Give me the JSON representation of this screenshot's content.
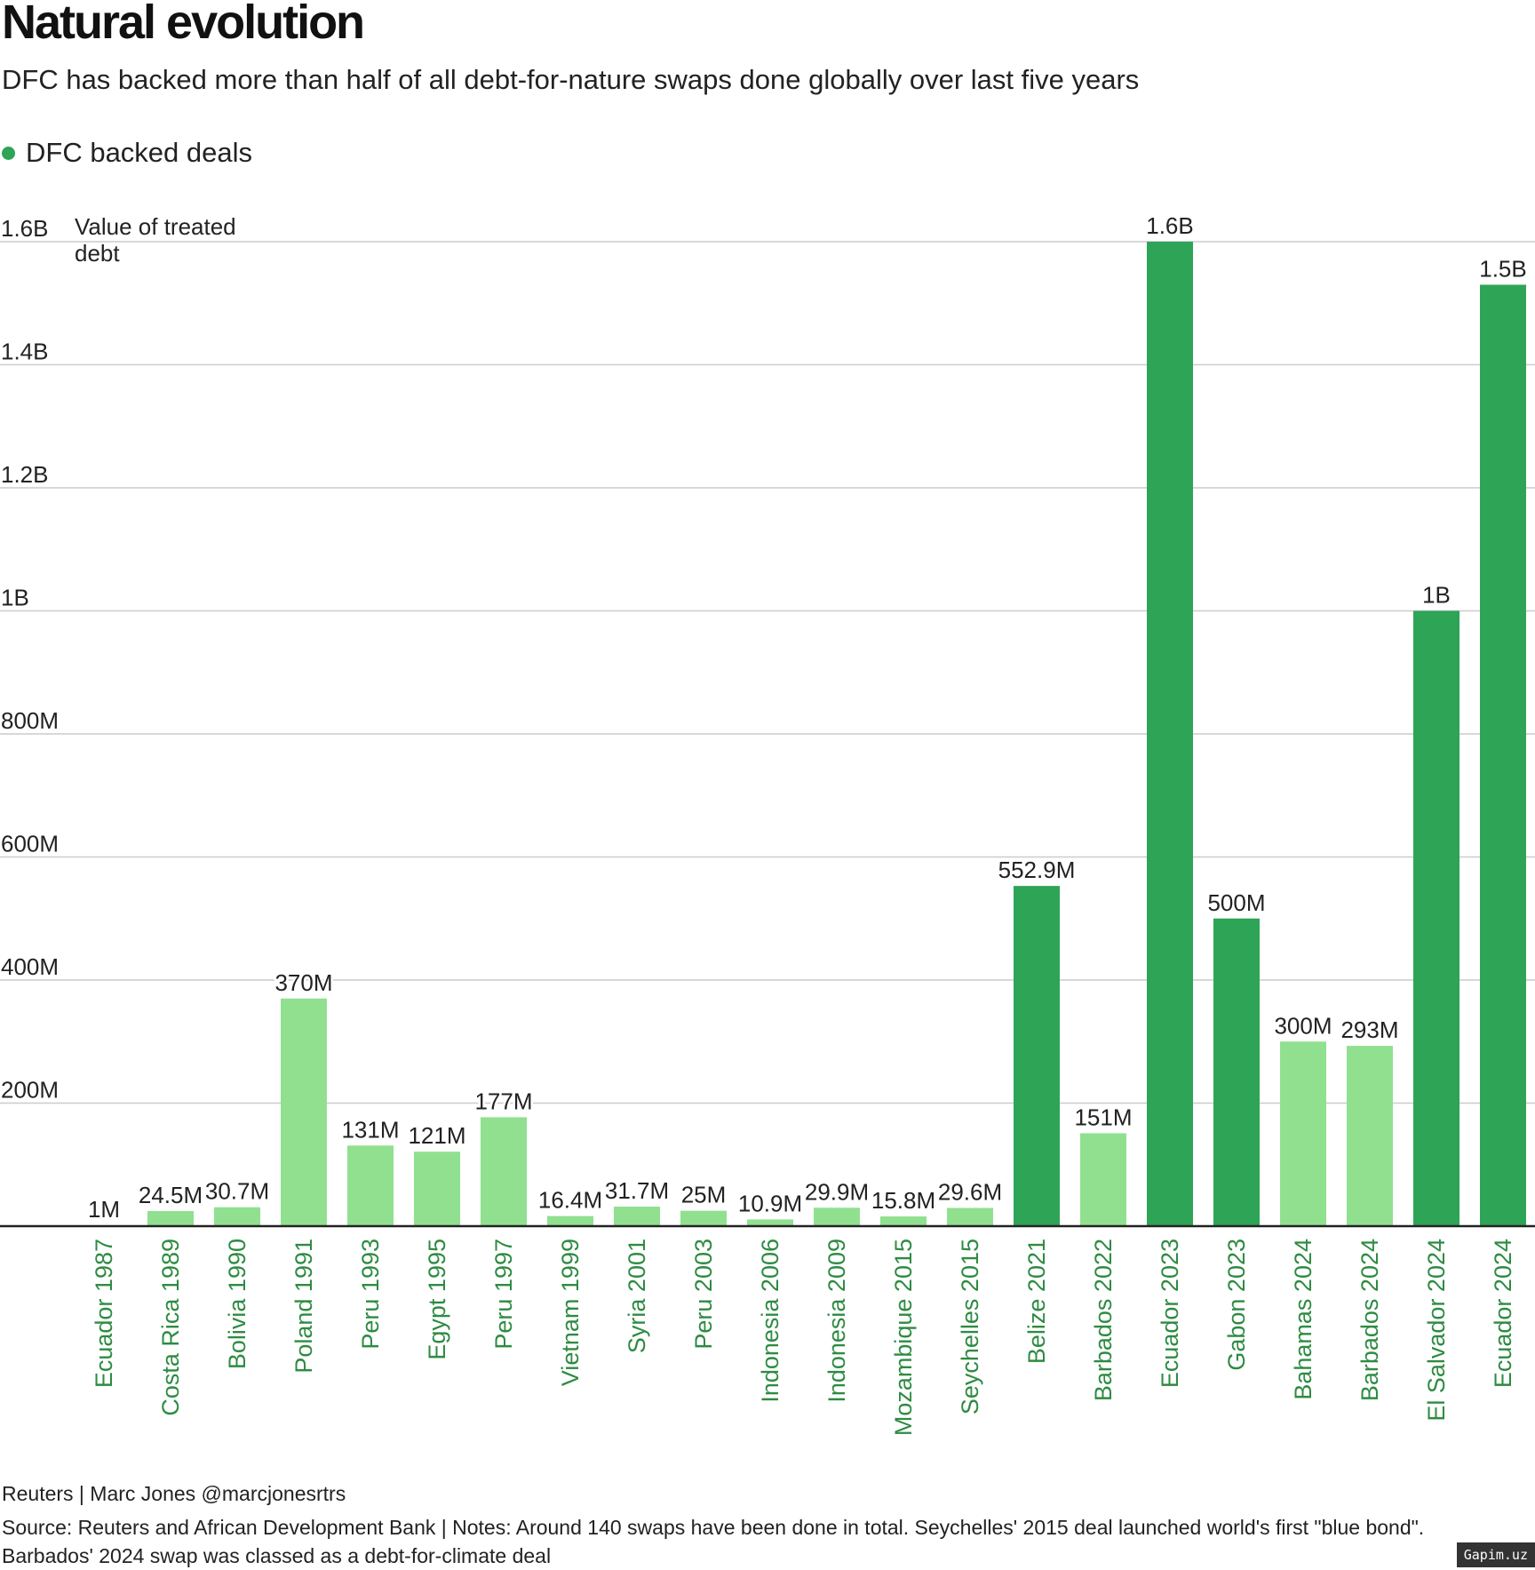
{
  "header": {
    "title": "Natural evolution",
    "subtitle": "DFC has backed more than half of all debt-for-nature swaps done globally over last five years",
    "legend_label": "DFC backed deals"
  },
  "colors": {
    "dfc": "#2ea456",
    "other": "#90e090",
    "label_text": "#2e8b42",
    "grid": "#cccccc",
    "axis": "#222222"
  },
  "chart_data": {
    "type": "bar",
    "title": "Natural evolution",
    "ylabel": "Value of treated debt",
    "ylabel_lines": [
      "Value of treated",
      "debt"
    ],
    "ylim": [
      0,
      1600000000
    ],
    "yticks": [
      200000000,
      400000000,
      600000000,
      800000000,
      1000000000,
      1200000000,
      1400000000,
      1600000000
    ],
    "ytick_labels": [
      "200M",
      "400M",
      "600M",
      "800M",
      "1B",
      "1.2B",
      "1.4B",
      "1.6B"
    ],
    "legend": "DFC backed deals",
    "categories": [
      "Ecuador 1987",
      "Costa Rica 1989",
      "Bolivia 1990",
      "Poland 1991",
      "Peru 1993",
      "Egypt 1995",
      "Peru 1997",
      "Vietnam 1999",
      "Syria 2001",
      "Peru 2003",
      "Indonesia 2006",
      "Indonesia 2009",
      "Mozambique 2015",
      "Seychelles 2015",
      "Belize 2021",
      "Barbados 2022",
      "Ecuador 2023",
      "Gabon 2023",
      "Bahamas 2024",
      "Barbados 2024",
      "El Salvador 2024",
      "Ecuador 2024"
    ],
    "values": [
      1000000,
      24500000,
      30700000,
      370000000,
      131000000,
      121000000,
      177000000,
      16400000,
      31700000,
      25000000,
      10900000,
      29900000,
      15800000,
      29600000,
      552900000,
      151000000,
      1600000000,
      500000000,
      300000000,
      293000000,
      1000000000,
      1530000000
    ],
    "value_labels": [
      "1M",
      "24.5M",
      "30.7M",
      "370M",
      "131M",
      "121M",
      "177M",
      "16.4M",
      "31.7M",
      "25M",
      "10.9M",
      "29.9M",
      "15.8M",
      "29.6M",
      "552.9M",
      "151M",
      "1.6B",
      "500M",
      "300M",
      "293M",
      "1B",
      "1.5B"
    ],
    "dfc_backed": [
      false,
      false,
      false,
      false,
      false,
      false,
      false,
      false,
      false,
      false,
      false,
      false,
      false,
      false,
      true,
      false,
      true,
      true,
      false,
      false,
      true,
      true
    ]
  },
  "footer": {
    "credit": "Reuters | Marc Jones @marcjonesrtrs",
    "source_line1": "Source: Reuters and African Development Bank | Notes: Around 140 swaps have been done in total. Seychelles' 2015 deal launched world's first \"blue bond\".",
    "source_line2": "Barbados' 2024 swap was classed as a debt-for-climate deal"
  },
  "watermark": "Gapim.uz"
}
